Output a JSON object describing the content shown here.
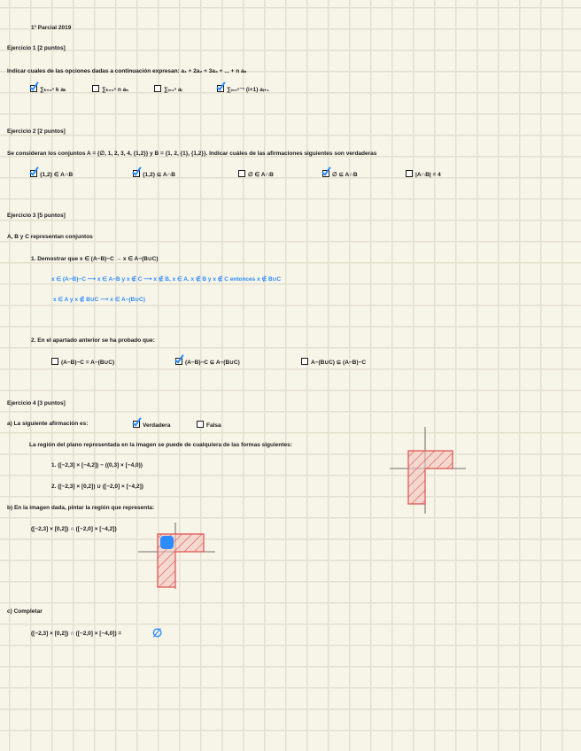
{
  "title": "1º Parcial 2019",
  "ej1": {
    "heading": "Ejercicio 1 [2 puntos]",
    "prompt": "Indicar cuales de las opciones dadas a continuación expresan: a₁ + 2a₂ + 3a₃ + ... + n aₙ",
    "options": [
      {
        "label": "∑ₖ₌₁ⁿ k aₖ",
        "checked": true
      },
      {
        "label": "∑ₖ₌₁ⁿ n aₙ",
        "checked": false
      },
      {
        "label": "∑ᵢ₌₁ⁿ aᵢ",
        "checked": false
      },
      {
        "label": "∑ᵢ₌₀ⁿ⁻¹ (i+1) aᵢ₊₁",
        "checked": true
      }
    ]
  },
  "ej2": {
    "heading": "Ejercicio 2 [2 puntos]",
    "prompt": "Se consideran los conjuntos A = {∅, 1, 2, 3, 4, {1,2}} y B = {1, 2, {1}, {1,2}}. Indicar cuáles de las afirmaciones siguientes son verdaderas",
    "options": [
      {
        "label": "{1,2} ∈ A∩B",
        "checked": true
      },
      {
        "label": "{1,2} ⊆ A∩B",
        "checked": true
      },
      {
        "label": "∅ ∈ A∩B",
        "checked": false
      },
      {
        "label": "∅ ⊆ A∩B",
        "checked": true
      },
      {
        "label": "|A∩B| = 4",
        "checked": false
      }
    ]
  },
  "ej3": {
    "heading": "Ejercicio 3 [5 puntos]",
    "intro": "A, B y C representan conjuntos",
    "part1": "1. Demostrar que x ∈ (A−B)−C → x ∈ A−(B∪C)",
    "answer_line1": "x ∈ (A−B)−C ⟶ x ∈ A−B y x ∉ C ⟶ x ∉ B, x ∈ A.   x ∉ B y x ∉ C entonces x ∉ B∪C",
    "answer_line2": "x ∈ A y x ∉ B∪C ⟶ x ∈ A−(B∪C)",
    "part2": "2. En el apartado anterior se ha probado que:",
    "options": [
      {
        "label": "(A−B)−C = A−(B∪C)",
        "checked": false
      },
      {
        "label": "(A−B)−C ⊆ A−(B∪C)",
        "checked": true
      },
      {
        "label": "A−(B∪C) ⊆ (A−B)−C",
        "checked": false
      }
    ]
  },
  "ej4": {
    "heading": "Ejercicio 4 [3 puntos]",
    "a_prompt": "a) La siguiente afirmación es:",
    "a_options": [
      {
        "label": "Verdadera",
        "checked": true
      },
      {
        "label": "Falsa",
        "checked": false
      }
    ],
    "a_text": "La región del plano representada en la imagen se puede de cualquiera de las formas siguientes:",
    "a_form1": "1. ([−2,3] × [−4,2]) − ((0,3] × [−4,0))",
    "a_form2": "2. ([−2,3] × [0,2]) ∪ ([−2,0] × [−4,2])",
    "b_prompt": "b) En la imagen dada, pintar la región que representa:",
    "b_expr": "([−2,3] × [0,2]) ∩ ([−2,0] × [−4,2])",
    "c_prompt": "c) Completar",
    "c_expr": "([−2,3] × [0,2]) ∩ ([−2,0] × [−4,0]) =",
    "c_answer": "∅"
  },
  "colors": {
    "ink": "#1a1a1a",
    "blue": "#2b8cff",
    "region": "#e05050"
  }
}
